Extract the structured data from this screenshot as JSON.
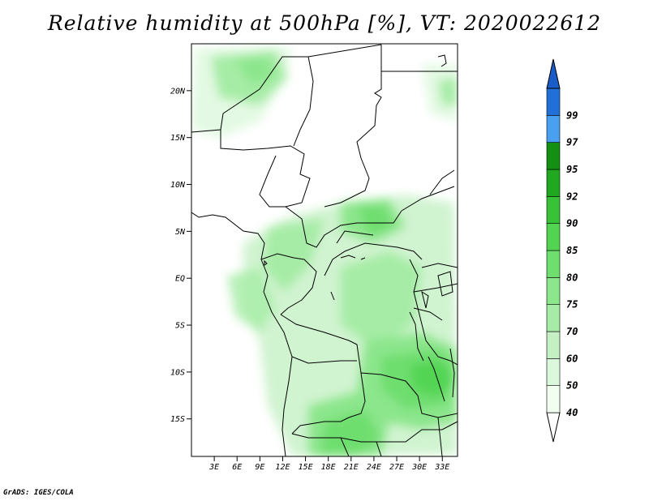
{
  "title": "Relative humidity at 500hPa [%], VT: 2020022612",
  "credit": "GrADS: IGES/COLA",
  "map": {
    "lat_range": [
      -19,
      25
    ],
    "lon_range": [
      0,
      35
    ],
    "lat_ticks": [
      {
        "value": 20,
        "label": "20N"
      },
      {
        "value": 15,
        "label": "15N"
      },
      {
        "value": 10,
        "label": "10N"
      },
      {
        "value": 5,
        "label": "5N"
      },
      {
        "value": 0,
        "label": "EQ"
      },
      {
        "value": -5,
        "label": "5S"
      },
      {
        "value": -10,
        "label": "10S"
      },
      {
        "value": -15,
        "label": "15S"
      }
    ],
    "lon_ticks": [
      {
        "value": 3,
        "label": "3E"
      },
      {
        "value": 6,
        "label": "6E"
      },
      {
        "value": 9,
        "label": "9E"
      },
      {
        "value": 12,
        "label": "12E"
      },
      {
        "value": 15,
        "label": "15E"
      },
      {
        "value": 18,
        "label": "18E"
      },
      {
        "value": 21,
        "label": "21E"
      },
      {
        "value": 24,
        "label": "24E"
      },
      {
        "value": 27,
        "label": "27E"
      },
      {
        "value": 30,
        "label": "30E"
      },
      {
        "value": 33,
        "label": "33E"
      }
    ]
  },
  "colorbar": {
    "levels": [
      {
        "label": "40",
        "color": "#f0fff0"
      },
      {
        "label": "50",
        "color": "#dcf8dc"
      },
      {
        "label": "60",
        "color": "#c4f0c4"
      },
      {
        "label": "70",
        "color": "#a6eca6"
      },
      {
        "label": "75",
        "color": "#8ce68c"
      },
      {
        "label": "80",
        "color": "#6ede6e"
      },
      {
        "label": "85",
        "color": "#52d452"
      },
      {
        "label": "90",
        "color": "#38c238"
      },
      {
        "label": "92",
        "color": "#20a820"
      },
      {
        "label": "95",
        "color": "#139013"
      },
      {
        "label": "97",
        "color": "#4aa0f0"
      },
      {
        "label": "99",
        "color": "#2070d8"
      }
    ],
    "low_color": "#ffffff",
    "high_color": "#1a5cc8"
  }
}
